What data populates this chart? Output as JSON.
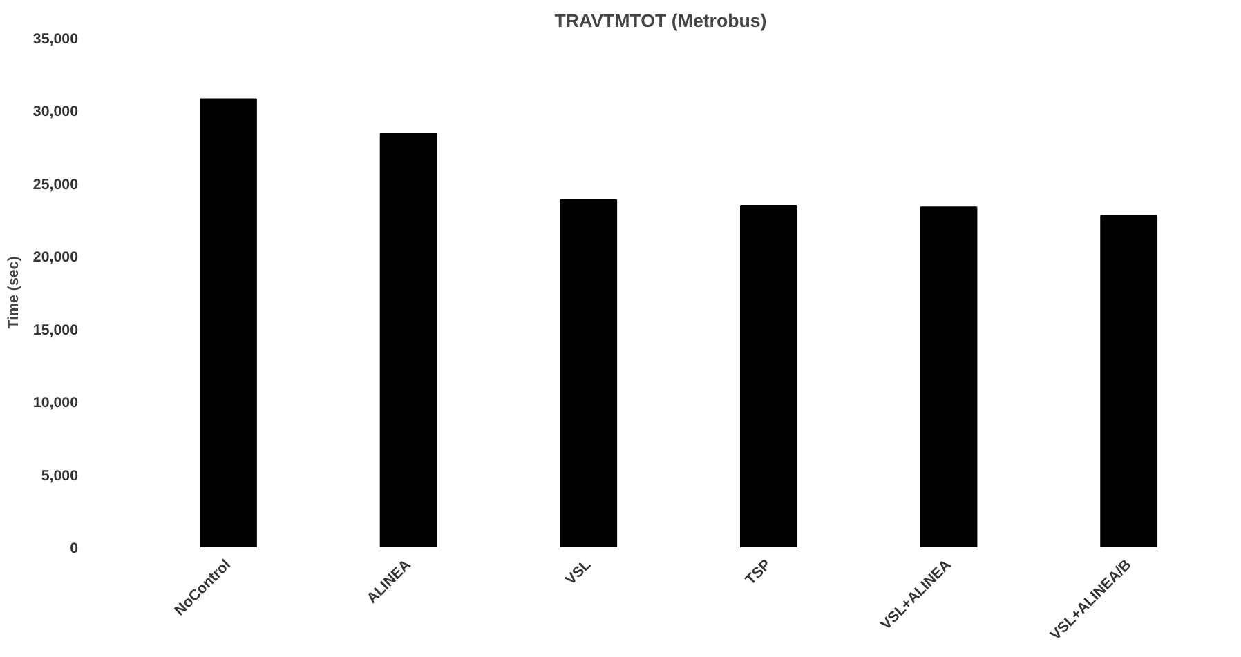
{
  "chart_data": {
    "type": "bar",
    "title": "TRAVTMTOT (Metrobus)",
    "ylabel": "Time (sec)",
    "categories": [
      "NoControl",
      "ALINEA",
      "VSL",
      "TSP",
      "VSL+ALINEA",
      "VSL+ALINEA/B"
    ],
    "values": [
      30800,
      28450,
      23870,
      23470,
      23370,
      22780
    ],
    "color": "#000000",
    "ylim": [
      0,
      35000
    ],
    "yticks": [
      {
        "value": 0,
        "label": "0"
      },
      {
        "value": 5000,
        "label": "5,000"
      },
      {
        "value": 10000,
        "label": "10,000"
      },
      {
        "value": 15000,
        "label": "15,000"
      },
      {
        "value": 20000,
        "label": "20,000"
      },
      {
        "value": 25000,
        "label": "25,000"
      },
      {
        "value": 30000,
        "label": "30,000"
      },
      {
        "value": 35000,
        "label": "35,000"
      }
    ],
    "grid": false
  }
}
